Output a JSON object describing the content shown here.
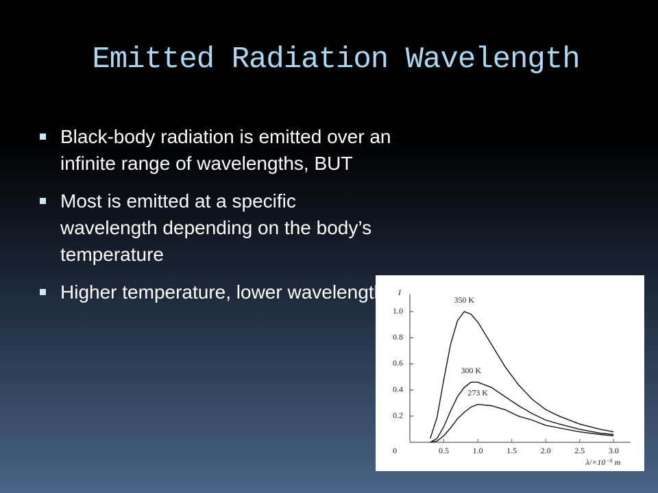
{
  "slide": {
    "title": "Emitted Radiation Wavelength",
    "bullets": [
      "Black-body radiation is emitted over an infinite range of wavelengths, BUT",
      "Most is emitted at a specific wavelength depending on the body’s temperature",
      "Higher temperature, lower wavelength"
    ]
  },
  "chart_data": {
    "type": "line",
    "ylabel": "I",
    "xlabel": "λ/×10⁻⁵ m",
    "x": [
      0.3,
      0.4,
      0.5,
      0.6,
      0.7,
      0.8,
      0.9,
      1.0,
      1.2,
      1.4,
      1.6,
      1.8,
      2.0,
      2.2,
      2.5,
      2.8,
      3.0
    ],
    "series": [
      {
        "name": "350 K",
        "color": "#111111",
        "values": [
          0.03,
          0.19,
          0.48,
          0.75,
          0.93,
          1.0,
          0.98,
          0.92,
          0.75,
          0.58,
          0.44,
          0.33,
          0.25,
          0.2,
          0.14,
          0.1,
          0.08
        ]
      },
      {
        "name": "300 K",
        "color": "#111111",
        "values": [
          0,
          0.03,
          0.12,
          0.24,
          0.35,
          0.42,
          0.46,
          0.46,
          0.42,
          0.35,
          0.28,
          0.22,
          0.17,
          0.14,
          0.1,
          0.07,
          0.06
        ]
      },
      {
        "name": "273 K",
        "color": "#111111",
        "values": [
          0,
          0.01,
          0.05,
          0.11,
          0.18,
          0.23,
          0.27,
          0.29,
          0.28,
          0.25,
          0.2,
          0.17,
          0.13,
          0.11,
          0.08,
          0.06,
          0.05
        ]
      }
    ],
    "xlim": [
      0,
      3.25
    ],
    "ylim": [
      0,
      1.1
    ],
    "xticks": [
      0,
      0.5,
      {
        "value": 1,
        "label": "1.0"
      },
      1.5,
      {
        "value": 2,
        "label": "2.0"
      },
      2.5,
      {
        "value": 3,
        "label": "3.0"
      }
    ],
    "yticks": [
      0.2,
      0.4,
      0.6,
      0.8,
      {
        "value": 1,
        "label": "1.0"
      }
    ]
  }
}
